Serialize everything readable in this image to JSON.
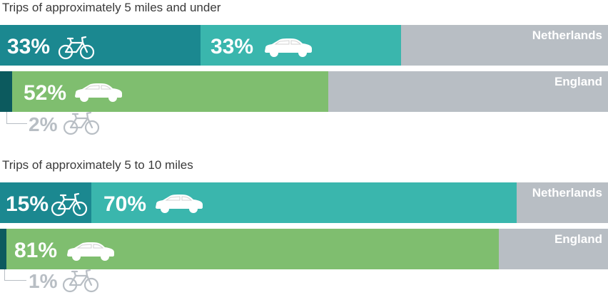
{
  "colors": {
    "bike_nl": "#1b8890",
    "car_nl": "#3ab6ad",
    "bike_en": "#0c5a5e",
    "car_en": "#7fbe6f",
    "rest": "#b8bec4",
    "icon_light": "#ffffff",
    "icon_muted": "#b8bec4"
  },
  "chart_data": [
    {
      "type": "bar",
      "title": "Trips of approximately 5 miles and under",
      "stacked": true,
      "orientation": "horizontal",
      "categories": [
        "Netherlands",
        "England"
      ],
      "series": [
        {
          "values": [
            33,
            2
          ],
          "icon": "bicycle-icon"
        },
        {
          "values": [
            33,
            52
          ],
          "icon": "car-icon"
        }
      ],
      "labels": [
        "33%",
        "33%",
        "2%",
        "52%"
      ],
      "xlim": [
        0,
        100
      ]
    },
    {
      "type": "bar",
      "title": "Trips of approximately 5 to 10 miles",
      "stacked": true,
      "orientation": "horizontal",
      "categories": [
        "Netherlands",
        "England"
      ],
      "series": [
        {
          "values": [
            15,
            1
          ],
          "icon": "bicycle-icon"
        },
        {
          "values": [
            70,
            81
          ],
          "icon": "car-icon"
        }
      ],
      "labels": [
        "15%",
        "70%",
        "1%",
        "81%"
      ],
      "xlim": [
        0,
        100
      ]
    }
  ]
}
